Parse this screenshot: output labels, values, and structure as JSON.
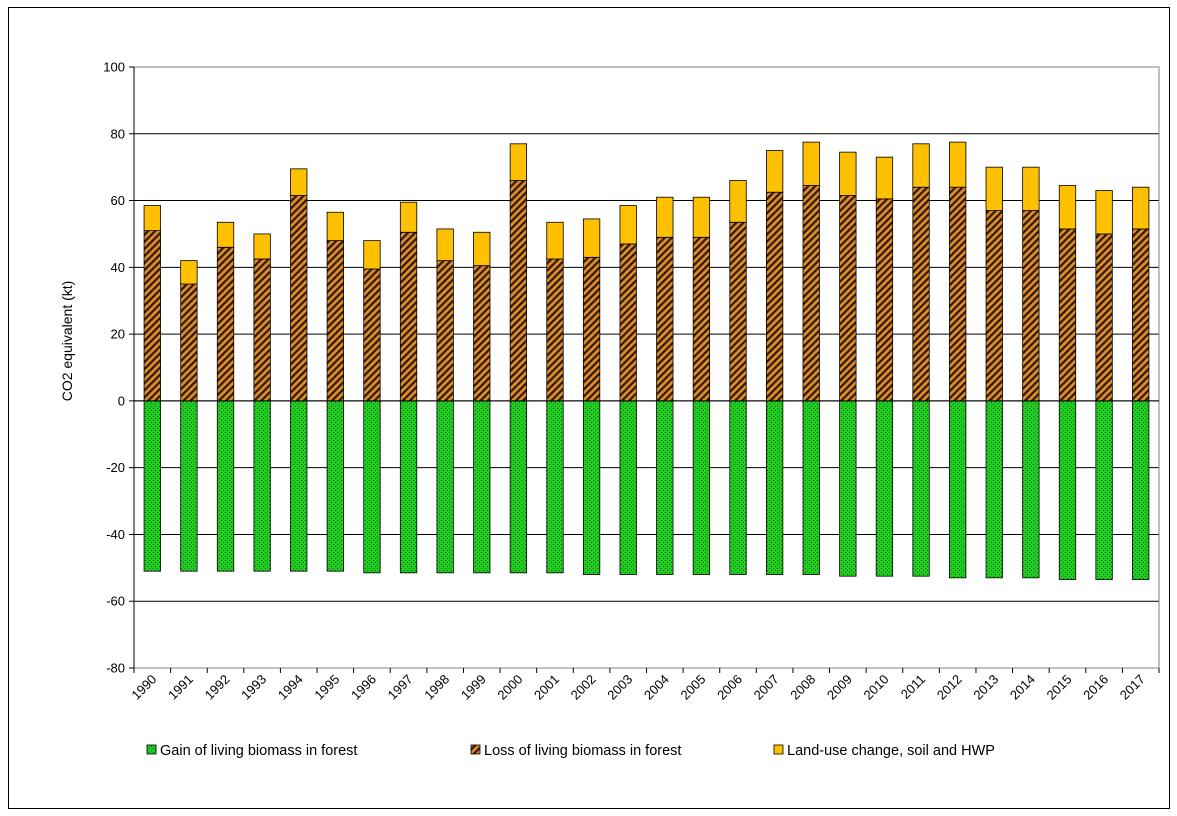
{
  "chart_data": {
    "type": "bar",
    "stacked": true,
    "title": "",
    "xlabel": "",
    "ylabel": "CO2 equivalent (kt)",
    "ylim": [
      -80,
      100
    ],
    "yticks": [
      -80,
      -60,
      -40,
      -20,
      0,
      20,
      40,
      60,
      80,
      100
    ],
    "grid": true,
    "legend_position": "bottom",
    "categories": [
      "1990",
      "1991",
      "1992",
      "1993",
      "1994",
      "1995",
      "1996",
      "1997",
      "1998",
      "1999",
      "2000",
      "2001",
      "2002",
      "2003",
      "2004",
      "2005",
      "2006",
      "2007",
      "2008",
      "2009",
      "2010",
      "2011",
      "2012",
      "2013",
      "2014",
      "2015",
      "2016",
      "2017"
    ],
    "series": [
      {
        "name": "Gain of living biomass in forest",
        "color": "#22cc22",
        "pattern": "dots",
        "values": [
          -51,
          -51,
          -51,
          -51,
          -51,
          -51,
          -51.5,
          -51.5,
          -51.5,
          -51.5,
          -51.5,
          -51.5,
          -52,
          -52,
          -52,
          -52,
          -52,
          -52,
          -52,
          -52.5,
          -52.5,
          -52.5,
          -53,
          -53,
          -53,
          -53.5,
          -53.5,
          -53.5
        ]
      },
      {
        "name": "Loss of living biomass in forest",
        "color": "#cc7722",
        "pattern": "hatch",
        "values": [
          51,
          35,
          46,
          42.5,
          61.5,
          48,
          39.5,
          50.5,
          42,
          40.5,
          66,
          42.5,
          43,
          47,
          49,
          49,
          53.5,
          62.5,
          64.5,
          61.5,
          60.5,
          64,
          64,
          57,
          57,
          51.5,
          50,
          51.5
        ]
      },
      {
        "name": "Land-use change, soil and HWP",
        "color": "#ffc000",
        "pattern": "solid",
        "values": [
          7.5,
          7,
          7.5,
          7.5,
          8,
          8.5,
          8.5,
          9,
          9.5,
          10,
          11,
          11,
          11.5,
          11.5,
          12,
          12,
          12.5,
          12.5,
          13,
          13,
          12.5,
          13,
          13.5,
          13,
          13,
          13,
          13,
          12.5
        ]
      }
    ]
  }
}
